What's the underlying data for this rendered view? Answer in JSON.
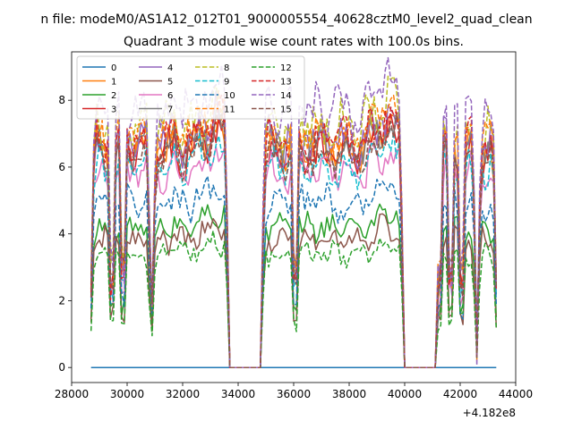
{
  "chart_data": {
    "type": "line",
    "suptitle": "n file: modeM0/AS1A12_012T01_9000005554_40628cztM0_level2_quad_clean",
    "title": "Quadrant 3 module wise count rates with 100.0s bins.",
    "xlabel": "",
    "ylabel": "",
    "x_offset_label": "+4.182e8",
    "xlim": [
      28000,
      44000
    ],
    "ylim": [
      -0.45,
      9.45
    ],
    "x_ticks": [
      28000,
      30000,
      32000,
      34000,
      36000,
      38000,
      40000,
      42000,
      44000
    ],
    "x_tick_labels": [
      "28000",
      "30000",
      "32000",
      "34000",
      "36000",
      "38000",
      "40000",
      "42000",
      "44000"
    ],
    "y_ticks": [
      0,
      2,
      4,
      6,
      8
    ],
    "y_tick_labels": [
      "0",
      "2",
      "4",
      "6",
      "8"
    ],
    "grid": false,
    "legend_placement": "upper-left",
    "legend_columns": 4,
    "segments": [
      {
        "start": 28700,
        "end": 33650,
        "dips": [
          29450,
          29850,
          30880
        ],
        "peak_at": 33200
      },
      {
        "start": 33650,
        "end": 34850,
        "gap": true
      },
      {
        "start": 34850,
        "end": 39950,
        "dips": [
          36050
        ],
        "peak_at": 39350
      },
      {
        "start": 39950,
        "end": 41100,
        "gap": true
      },
      {
        "start": 41100,
        "end": 43300,
        "dips": [
          41250,
          41650,
          42050,
          42600
        ]
      }
    ],
    "series": [
      {
        "name": "0",
        "color": "#1f77b4",
        "dash": "solid",
        "level": 0.0
      },
      {
        "name": "1",
        "color": "#ff7f0e",
        "dash": "solid",
        "level": 6.5
      },
      {
        "name": "2",
        "color": "#2ca02c",
        "dash": "solid",
        "level": 4.2
      },
      {
        "name": "3",
        "color": "#d62728",
        "dash": "solid",
        "level": 6.4
      },
      {
        "name": "4",
        "color": "#9467bd",
        "dash": "solid",
        "level": 6.8
      },
      {
        "name": "5",
        "color": "#8c564b",
        "dash": "solid",
        "level": 3.8
      },
      {
        "name": "6",
        "color": "#e377c2",
        "dash": "solid",
        "level": 5.8
      },
      {
        "name": "7",
        "color": "#7f7f7f",
        "dash": "solid",
        "level": 6.6
      },
      {
        "name": "8",
        "color": "#bcbd22",
        "dash": "dashed",
        "level": 7.2
      },
      {
        "name": "9",
        "color": "#17becf",
        "dash": "dashed",
        "level": 6.0
      },
      {
        "name": "10",
        "color": "#1f77b4",
        "dash": "dashed",
        "level": 4.9
      },
      {
        "name": "11",
        "color": "#ff7f0e",
        "dash": "dashed",
        "level": 7.0
      },
      {
        "name": "12",
        "color": "#2ca02c",
        "dash": "dashed",
        "level": 3.4
      },
      {
        "name": "13",
        "color": "#d62728",
        "dash": "dashed",
        "level": 6.7
      },
      {
        "name": "14",
        "color": "#9467bd",
        "dash": "dashed",
        "level": 7.7
      },
      {
        "name": "15",
        "color": "#8c564b",
        "dash": "dashed",
        "level": 6.3
      }
    ]
  }
}
